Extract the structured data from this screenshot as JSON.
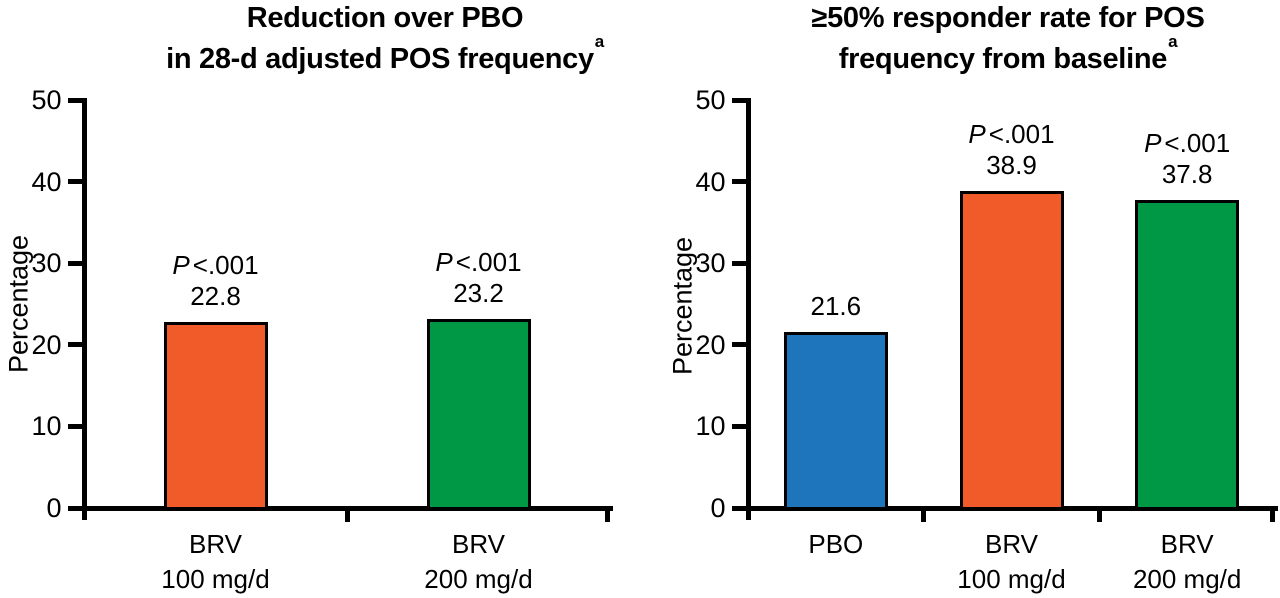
{
  "figure": {
    "background": "#ffffff",
    "text_color": "#000000",
    "axis_color": "#000000"
  },
  "chart_data": [
    {
      "type": "bar",
      "title_lines": [
        "Reduction over PBO",
        "in 28-d adjusted POS frequency"
      ],
      "title_superscript": "a",
      "ylabel": "Percentage",
      "ylim": [
        0,
        50
      ],
      "yticks": [
        0,
        10,
        20,
        30,
        40,
        50
      ],
      "grid": false,
      "legend": null,
      "categories": [
        "BRV 100 mg/d",
        "BRV 200 mg/d"
      ],
      "category_label_lines": [
        [
          "BRV",
          "100 mg/d"
        ],
        [
          "BRV",
          "200 mg/d"
        ]
      ],
      "values": [
        22.8,
        23.2
      ],
      "value_labels": [
        "22.8",
        "23.2"
      ],
      "p_values": [
        "P<.001",
        "P<.001"
      ],
      "bar_colors": [
        "#F15A29",
        "#009845"
      ],
      "bar_color_names": [
        "orange",
        "green"
      ]
    },
    {
      "type": "bar",
      "title_lines": [
        "≥50% responder rate for POS",
        "frequency from baseline"
      ],
      "title_superscript": "a",
      "ylabel": "Percentage",
      "ylim": [
        0,
        50
      ],
      "yticks": [
        0,
        10,
        20,
        30,
        40,
        50
      ],
      "grid": false,
      "legend": null,
      "categories": [
        "PBO",
        "BRV 100 mg/d",
        "BRV 200 mg/d"
      ],
      "category_label_lines": [
        [
          "PBO"
        ],
        [
          "BRV",
          "100 mg/d"
        ],
        [
          "BRV",
          "200 mg/d"
        ]
      ],
      "values": [
        21.6,
        38.9,
        37.8
      ],
      "value_labels": [
        "21.6",
        "38.9",
        "37.8"
      ],
      "p_values": [
        null,
        "P<.001",
        "P<.001"
      ],
      "bar_colors": [
        "#1F75BC",
        "#F15A29",
        "#009845"
      ],
      "bar_color_names": [
        "blue",
        "orange",
        "green"
      ]
    }
  ]
}
